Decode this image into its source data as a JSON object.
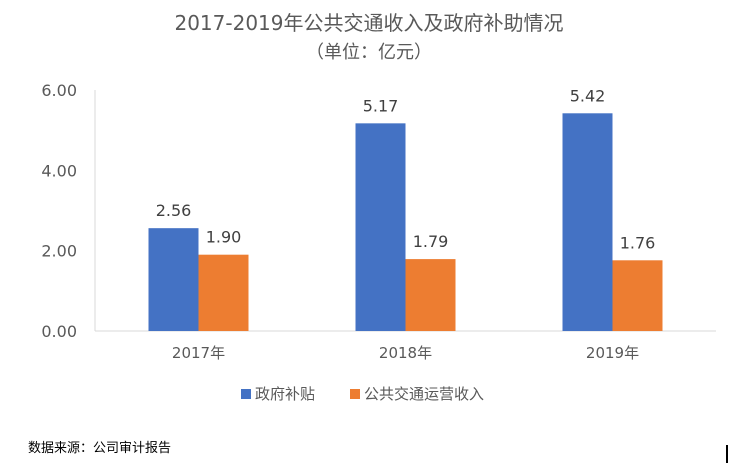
{
  "source_note": "数据来源：公司审计报告",
  "colors": {
    "government_subsidy": "#4472C4",
    "transit_revenue": "#ED7D31",
    "axis_text": "#595959",
    "gridline": "#D9D9D9"
  },
  "chart_data": {
    "type": "bar",
    "title": "2017-2019年公共交通收入及政府补助情况",
    "subtitle": "（单位：亿元）",
    "categories": [
      "2017年",
      "2018年",
      "2019年"
    ],
    "series": [
      {
        "name": "政府补贴",
        "values": [
          2.56,
          5.17,
          5.42
        ],
        "labels": [
          "2.56",
          "5.17",
          "5.42"
        ]
      },
      {
        "name": "公共交通运营收入",
        "values": [
          1.9,
          1.79,
          1.76
        ],
        "labels": [
          "1.90",
          "1.79",
          "1.76"
        ]
      }
    ],
    "y_ticks": [
      "0.00",
      "2.00",
      "4.00",
      "6.00"
    ],
    "ylim": [
      0,
      6
    ],
    "legend_position": "bottom",
    "grid": false
  }
}
